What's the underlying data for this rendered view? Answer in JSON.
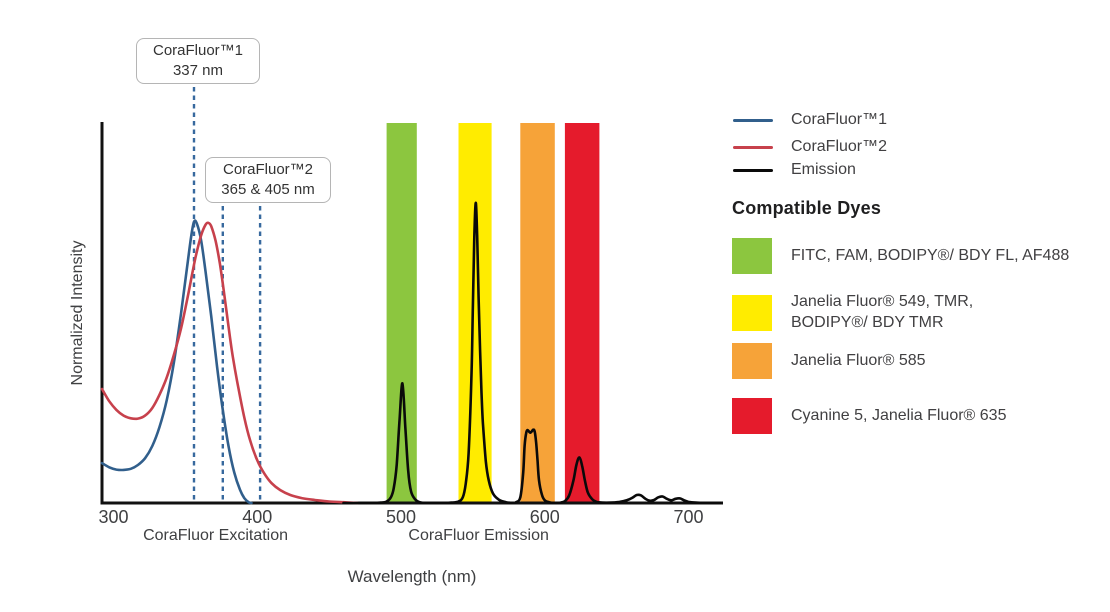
{
  "chart_data": {
    "type": "line",
    "title": "",
    "xlabel": "Wavelength (nm)",
    "ylabel": "Normalized Intensity",
    "x_range": [
      292,
      724
    ],
    "y_range": [
      0,
      1
    ],
    "x_ticks": [
      300,
      400,
      500,
      600,
      700
    ],
    "grid": false,
    "legend_position": "right",
    "background": "#FFFFFF",
    "axis_section_labels": [
      {
        "text": "CoraFluor Excitation",
        "center_nm": 371
      },
      {
        "text": "CoraFluor Emission",
        "center_nm": 554
      }
    ],
    "bands": [
      {
        "name": "green",
        "color": "#8CC63F",
        "nm_start": 490,
        "nm_end": 511
      },
      {
        "name": "yellow",
        "color": "#FFEC00",
        "nm_start": 540,
        "nm_end": 563
      },
      {
        "name": "orange",
        "color": "#F6A339",
        "nm_start": 583,
        "nm_end": 607
      },
      {
        "name": "red",
        "color": "#E51B2C",
        "nm_start": 614,
        "nm_end": 638
      }
    ],
    "annotations": [
      {
        "title": "CoraFluor™1",
        "value": "337 nm",
        "lines_nm": [
          356
        ]
      },
      {
        "title": "CoraFluor™2",
        "value": "365 & 405 nm",
        "lines_nm": [
          376,
          402
        ]
      }
    ],
    "annotation_line_color": "#37699E",
    "series": [
      {
        "name": "CoraFluor™1",
        "color": "#315F8C",
        "points": [
          [
            292,
            0.105
          ],
          [
            297,
            0.094
          ],
          [
            302,
            0.088
          ],
          [
            307,
            0.087
          ],
          [
            312,
            0.09
          ],
          [
            317,
            0.1
          ],
          [
            322,
            0.118
          ],
          [
            327,
            0.15
          ],
          [
            332,
            0.2
          ],
          [
            337,
            0.27
          ],
          [
            342,
            0.37
          ],
          [
            347,
            0.5
          ],
          [
            351,
            0.615
          ],
          [
            354,
            0.7
          ],
          [
            356,
            0.74
          ],
          [
            358,
            0.735
          ],
          [
            361,
            0.69
          ],
          [
            364,
            0.61
          ],
          [
            368,
            0.49
          ],
          [
            372,
            0.36
          ],
          [
            376,
            0.245
          ],
          [
            380,
            0.15
          ],
          [
            384,
            0.08
          ],
          [
            388,
            0.035
          ],
          [
            391,
            0.013
          ],
          [
            394,
            0.002
          ],
          [
            396,
            0
          ]
        ]
      },
      {
        "name": "CoraFluor™2",
        "color": "#C7414C",
        "points": [
          [
            292,
            0.3
          ],
          [
            297,
            0.268
          ],
          [
            302,
            0.245
          ],
          [
            307,
            0.23
          ],
          [
            312,
            0.223
          ],
          [
            317,
            0.222
          ],
          [
            322,
            0.23
          ],
          [
            327,
            0.25
          ],
          [
            332,
            0.285
          ],
          [
            337,
            0.33
          ],
          [
            342,
            0.39
          ],
          [
            347,
            0.46
          ],
          [
            352,
            0.55
          ],
          [
            357,
            0.645
          ],
          [
            361,
            0.705
          ],
          [
            364,
            0.732
          ],
          [
            366,
            0.737
          ],
          [
            368,
            0.728
          ],
          [
            371,
            0.69
          ],
          [
            374,
            0.63
          ],
          [
            377,
            0.55
          ],
          [
            380,
            0.465
          ],
          [
            383,
            0.385
          ],
          [
            387,
            0.3
          ],
          [
            391,
            0.225
          ],
          [
            395,
            0.165
          ],
          [
            400,
            0.112
          ],
          [
            405,
            0.077
          ],
          [
            410,
            0.052
          ],
          [
            416,
            0.034
          ],
          [
            423,
            0.021
          ],
          [
            431,
            0.013
          ],
          [
            440,
            0.008
          ],
          [
            450,
            0.004
          ],
          [
            460,
            0.002
          ],
          [
            470,
            0
          ]
        ]
      },
      {
        "name": "Emission",
        "color": "#0A0A0A",
        "points": [
          [
            460,
            0
          ],
          [
            478,
            0
          ],
          [
            486,
            0.001
          ],
          [
            490,
            0.004
          ],
          [
            493,
            0.015
          ],
          [
            495,
            0.04
          ],
          [
            497,
            0.1
          ],
          [
            499,
            0.22
          ],
          [
            501,
            0.315
          ],
          [
            503,
            0.2
          ],
          [
            505,
            0.085
          ],
          [
            507,
            0.03
          ],
          [
            510,
            0.009
          ],
          [
            513,
            0.002
          ],
          [
            518,
            0
          ],
          [
            528,
            0
          ],
          [
            535,
            0.001
          ],
          [
            540,
            0.004
          ],
          [
            543,
            0.015
          ],
          [
            545,
            0.05
          ],
          [
            547,
            0.13
          ],
          [
            549,
            0.33
          ],
          [
            550,
            0.52
          ],
          [
            551,
            0.7
          ],
          [
            552,
            0.79
          ],
          [
            553,
            0.7
          ],
          [
            554,
            0.54
          ],
          [
            555,
            0.4
          ],
          [
            556,
            0.29
          ],
          [
            557,
            0.21
          ],
          [
            559,
            0.11
          ],
          [
            561,
            0.06
          ],
          [
            564,
            0.025
          ],
          [
            568,
            0.009
          ],
          [
            573,
            0.002
          ],
          [
            578,
            0
          ],
          [
            580,
            0.002
          ],
          [
            583,
            0.015
          ],
          [
            585,
            0.08
          ],
          [
            586,
            0.15
          ],
          [
            587,
            0.183
          ],
          [
            588,
            0.192
          ],
          [
            590,
            0.185
          ],
          [
            592,
            0.193
          ],
          [
            593,
            0.188
          ],
          [
            594,
            0.16
          ],
          [
            595,
            0.11
          ],
          [
            596,
            0.06
          ],
          [
            598,
            0.022
          ],
          [
            600,
            0.007
          ],
          [
            603,
            0.002
          ],
          [
            607,
            0
          ],
          [
            611,
            0.001
          ],
          [
            614,
            0.005
          ],
          [
            617,
            0.02
          ],
          [
            620,
            0.06
          ],
          [
            622,
            0.1
          ],
          [
            624,
            0.12
          ],
          [
            626,
            0.098
          ],
          [
            628,
            0.058
          ],
          [
            630,
            0.027
          ],
          [
            633,
            0.01
          ],
          [
            636,
            0.003
          ],
          [
            640,
            0.001
          ],
          [
            646,
            0.001
          ],
          [
            652,
            0.003
          ],
          [
            657,
            0.007
          ],
          [
            661,
            0.014
          ],
          [
            664,
            0.021
          ],
          [
            667,
            0.02
          ],
          [
            670,
            0.011
          ],
          [
            673,
            0.006
          ],
          [
            676,
            0.008
          ],
          [
            679,
            0.015
          ],
          [
            682,
            0.017
          ],
          [
            685,
            0.011
          ],
          [
            688,
            0.007
          ],
          [
            691,
            0.011
          ],
          [
            694,
            0.012
          ],
          [
            697,
            0.007
          ],
          [
            700,
            0.003
          ],
          [
            705,
            0.001
          ],
          [
            712,
            0
          ],
          [
            722,
            0
          ]
        ]
      }
    ]
  },
  "legend": {
    "items": [
      {
        "label": "CoraFluor™1",
        "color": "#315F8C"
      },
      {
        "label": "CoraFluor™2",
        "color": "#C7414C"
      },
      {
        "label": "Emission",
        "color": "#0A0A0A"
      }
    ]
  },
  "dyes": {
    "heading": "Compatible Dyes",
    "items": [
      {
        "name": "green",
        "color": "#8CC63F",
        "label": "FITC, FAM, BODIPY®/ BDY FL, AF488"
      },
      {
        "name": "yellow",
        "color": "#FFEC00",
        "label": "Janelia Fluor® 549, TMR,\nBODIPY®/ BDY TMR"
      },
      {
        "name": "orange",
        "color": "#F6A339",
        "label": "Janelia Fluor® 585"
      },
      {
        "name": "red",
        "color": "#E51B2C",
        "label": "Cyanine 5, Janelia Fluor® 635"
      }
    ]
  }
}
